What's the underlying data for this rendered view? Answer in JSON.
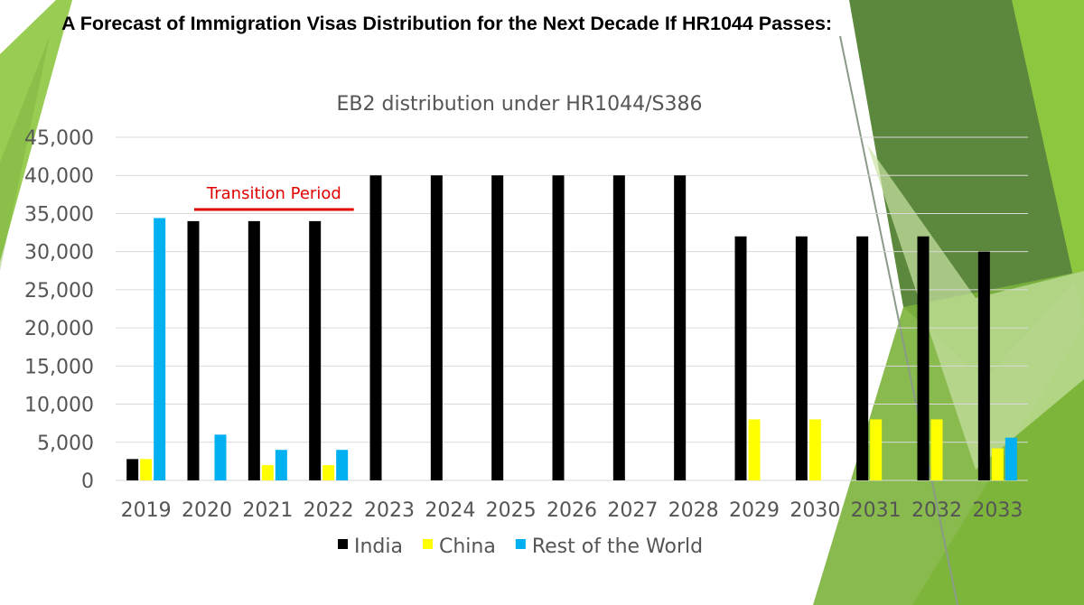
{
  "page": {
    "title": "A Forecast of Immigration Visas Distribution for the Next Decade If HR1044 Passes:"
  },
  "theme": {
    "green_light": "#8dc63f",
    "green_mid": "#6fa83a",
    "green_dark": "#4e7e2c",
    "annotation_color": "#e00000",
    "grid_color": "#d9d9d9"
  },
  "chart_data": {
    "type": "bar",
    "title": "EB2 distribution under HR1044/S386",
    "categories": [
      "2019",
      "2020",
      "2021",
      "2022",
      "2023",
      "2024",
      "2025",
      "2026",
      "2027",
      "2028",
      "2029",
      "2030",
      "2031",
      "2032",
      "2033"
    ],
    "series": [
      {
        "name": "India",
        "color": "#000000",
        "values": [
          2800,
          34000,
          34000,
          34000,
          40000,
          40000,
          40000,
          40000,
          40000,
          40000,
          32000,
          32000,
          32000,
          32000,
          30000
        ]
      },
      {
        "name": "China",
        "color": "#ffff00",
        "values": [
          2800,
          0,
          2000,
          2000,
          0,
          0,
          0,
          0,
          0,
          0,
          8000,
          8000,
          8000,
          8000,
          4200
        ]
      },
      {
        "name": "Rest of the World",
        "color": "#00b0f0",
        "values": [
          34400,
          6000,
          4000,
          4000,
          0,
          0,
          0,
          0,
          0,
          0,
          0,
          0,
          0,
          0,
          5600
        ]
      }
    ],
    "ylim": [
      0,
      45000
    ],
    "yticks": [
      0,
      5000,
      10000,
      15000,
      20000,
      25000,
      30000,
      35000,
      40000,
      45000
    ],
    "ytick_labels": [
      "0",
      "5,000",
      "10,000",
      "15,000",
      "20,000",
      "25,000",
      "30,000",
      "35,000",
      "40,000",
      "45,000"
    ],
    "grid": true,
    "legend_position": "bottom",
    "annotations": [
      {
        "text": "Transition Period",
        "from_category": "2020",
        "to_category": "2022"
      }
    ]
  }
}
